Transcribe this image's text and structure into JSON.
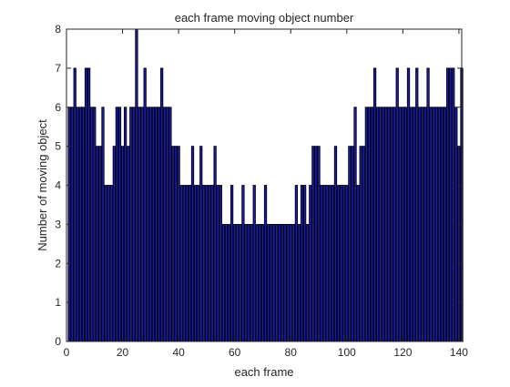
{
  "chart_data": {
    "type": "bar",
    "title": "each frame moving object number",
    "xlabel": "each frame",
    "ylabel": "Number of moving object",
    "xlim": [
      0,
      141
    ],
    "ylim": [
      0,
      8
    ],
    "x_ticks": [
      0,
      20,
      40,
      60,
      80,
      100,
      120,
      140
    ],
    "y_ticks": [
      0,
      1,
      2,
      3,
      4,
      5,
      6,
      7,
      8
    ],
    "grid": false,
    "bar_color": "#1a1aa8",
    "edge_color": "#000000",
    "x": [
      1,
      2,
      3,
      4,
      5,
      6,
      7,
      8,
      9,
      10,
      11,
      12,
      13,
      14,
      15,
      16,
      17,
      18,
      19,
      20,
      21,
      22,
      23,
      24,
      25,
      26,
      27,
      28,
      29,
      30,
      31,
      32,
      33,
      34,
      35,
      36,
      37,
      38,
      39,
      40,
      41,
      42,
      43,
      44,
      45,
      46,
      47,
      48,
      49,
      50,
      51,
      52,
      53,
      54,
      55,
      56,
      57,
      58,
      59,
      60,
      61,
      62,
      63,
      64,
      65,
      66,
      67,
      68,
      69,
      70,
      71,
      72,
      73,
      74,
      75,
      76,
      77,
      78,
      79,
      80,
      81,
      82,
      83,
      84,
      85,
      86,
      87,
      88,
      89,
      90,
      91,
      92,
      93,
      94,
      95,
      96,
      97,
      98,
      99,
      100,
      101,
      102,
      103,
      104,
      105,
      106,
      107,
      108,
      109,
      110,
      111,
      112,
      113,
      114,
      115,
      116,
      117,
      118,
      119,
      120,
      121,
      122,
      123,
      124,
      125,
      126,
      127,
      128,
      129,
      130,
      131,
      132,
      133,
      134,
      135,
      136,
      137,
      138,
      139,
      140,
      141
    ],
    "values": [
      6,
      6,
      7,
      6,
      6,
      6,
      7,
      7,
      6,
      6,
      5,
      5,
      6,
      4,
      4,
      4,
      5,
      6,
      6,
      5,
      6,
      5,
      6,
      6,
      8,
      6,
      6,
      7,
      6,
      6,
      6,
      6,
      6,
      7,
      6,
      6,
      6,
      5,
      5,
      5,
      4,
      4,
      4,
      4,
      5,
      4,
      4,
      5,
      4,
      4,
      4,
      4,
      5,
      4,
      4,
      3,
      3,
      3,
      4,
      3,
      3,
      3,
      4,
      3,
      3,
      3,
      4,
      3,
      3,
      3,
      4,
      3,
      3,
      3,
      3,
      3,
      3,
      3,
      3,
      3,
      3,
      4,
      3,
      4,
      4,
      3,
      4,
      5,
      5,
      5,
      4,
      4,
      4,
      4,
      4,
      5,
      4,
      4,
      4,
      4,
      5,
      5,
      6,
      4,
      5,
      5,
      6,
      6,
      6,
      7,
      6,
      6,
      6,
      6,
      6,
      6,
      6,
      7,
      6,
      6,
      6,
      7,
      6,
      6,
      7,
      6,
      6,
      6,
      7,
      6,
      6,
      6,
      6,
      6,
      6,
      7,
      7,
      7,
      6,
      5,
      7
    ]
  }
}
